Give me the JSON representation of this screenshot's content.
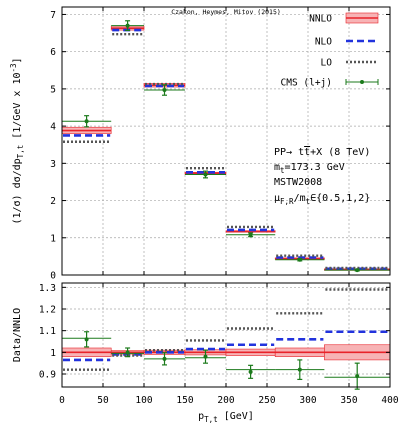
{
  "chart_data": [
    {
      "type": "step",
      "panel": "main",
      "credit": "Czakon, Heymes, Mitov (2015)",
      "ylabel_parts": [
        "(1/σ) dσ/dp",
        "T,t",
        " [1/GeV x 10",
        "-3",
        "]"
      ],
      "ylim": [
        0,
        7.2
      ],
      "yticks": [
        0,
        1,
        2,
        3,
        4,
        5,
        6,
        7
      ],
      "xlim": [
        0,
        400
      ],
      "xticks": [
        0,
        50,
        100,
        150,
        200,
        250,
        300,
        350,
        400
      ],
      "bins": [
        [
          0,
          60
        ],
        [
          60,
          100
        ],
        [
          100,
          150
        ],
        [
          150,
          200
        ],
        [
          200,
          260
        ],
        [
          260,
          320
        ],
        [
          320,
          400
        ]
      ],
      "grid": true,
      "legend_position": "top-right",
      "series": [
        {
          "name": "NNLO",
          "style": "band",
          "color": "#e8232a",
          "fill": "#f7b3b5",
          "values": [
            3.88,
            6.63,
            5.1,
            2.73,
            1.17,
            0.44,
            0.15
          ],
          "band": [
            [
              3.8,
              3.97
            ],
            [
              6.58,
              6.69
            ],
            [
              5.05,
              5.15
            ],
            [
              2.7,
              2.76
            ],
            [
              1.15,
              1.19
            ],
            [
              0.43,
              0.46
            ],
            [
              0.14,
              0.165
            ]
          ]
        },
        {
          "name": "NLO",
          "style": "dashed",
          "color": "#2233dd",
          "values": [
            3.75,
            6.58,
            5.08,
            2.76,
            1.21,
            0.47,
            0.165
          ]
        },
        {
          "name": "LO",
          "style": "dotted",
          "color": "#555555",
          "values": [
            3.58,
            6.47,
            5.13,
            2.87,
            1.29,
            0.52,
            0.19
          ]
        },
        {
          "name": "CMS (l+j)",
          "style": "points",
          "color": "#1b7a1b",
          "x": [
            30,
            80,
            125,
            175,
            230,
            290,
            360
          ],
          "values": [
            4.13,
            6.7,
            4.97,
            2.7,
            1.08,
            0.41,
            0.13
          ],
          "err": [
            0.15,
            0.13,
            0.14,
            0.09,
            0.05,
            0.03,
            0.02
          ]
        }
      ]
    },
    {
      "type": "step",
      "panel": "ratio",
      "ylabel": "Data/NNLO",
      "xlabel_parts": [
        "p",
        "T,t",
        " [GeV]"
      ],
      "ylim": [
        0.84,
        1.32
      ],
      "yticks": [
        "0.9",
        "1",
        "1.1",
        "1.2",
        "1.3"
      ],
      "xlim": [
        0,
        400
      ],
      "xticks": [
        0,
        50,
        100,
        150,
        200,
        250,
        300,
        350,
        400
      ],
      "bins": [
        [
          0,
          60
        ],
        [
          60,
          100
        ],
        [
          100,
          150
        ],
        [
          150,
          200
        ],
        [
          200,
          260
        ],
        [
          260,
          320
        ],
        [
          320,
          400
        ]
      ],
      "grid": true,
      "series": [
        {
          "name": "NNLO",
          "style": "band",
          "color": "#e8232a",
          "fill": "#f7b3b5",
          "values": [
            1.0,
            1.0,
            1.0,
            1.0,
            1.0,
            1.0,
            1.0
          ],
          "band": [
            [
              0.98,
              1.02
            ],
            [
              0.992,
              1.008
            ],
            [
              0.99,
              1.01
            ],
            [
              0.988,
              1.012
            ],
            [
              0.985,
              1.015
            ],
            [
              0.98,
              1.02
            ],
            [
              0.965,
              1.035
            ]
          ]
        },
        {
          "name": "NLO",
          "style": "dashed",
          "color": "#2233dd",
          "values": [
            0.965,
            0.99,
            1.0,
            1.015,
            1.035,
            1.06,
            1.095
          ]
        },
        {
          "name": "LO",
          "style": "dotted",
          "color": "#555555",
          "values": [
            0.92,
            0.985,
            1.01,
            1.055,
            1.11,
            1.18,
            1.29
          ]
        },
        {
          "name": "CMS (l+j)",
          "style": "points",
          "color": "#1b7a1b",
          "x": [
            30,
            80,
            125,
            175,
            230,
            290,
            360
          ],
          "values": [
            1.06,
            1.0,
            0.97,
            0.98,
            0.91,
            0.92,
            0.89
          ],
          "err": [
            0.035,
            0.02,
            0.028,
            0.03,
            0.03,
            0.045,
            0.06
          ],
          "steps": [
            1.065,
            0.995,
            0.97,
            0.975,
            0.92,
            0.92,
            0.885
          ]
        }
      ]
    }
  ],
  "annotation_lines": [
    [
      {
        "t": "PP→ t"
      },
      {
        "t": "t",
        "over": true
      },
      {
        "t": "+X (8 TeV)"
      }
    ],
    [
      {
        "t": "m"
      },
      {
        "t": "t",
        "sub": true
      },
      {
        "t": "=173.3 GeV"
      }
    ],
    [
      {
        "t": "MSTW2008"
      }
    ],
    [
      {
        "t": "μ"
      },
      {
        "t": "F,R",
        "sub": true
      },
      {
        "t": "/m"
      },
      {
        "t": "t",
        "sub": true
      },
      {
        "t": "∈{0.5,1,2}"
      }
    ]
  ]
}
